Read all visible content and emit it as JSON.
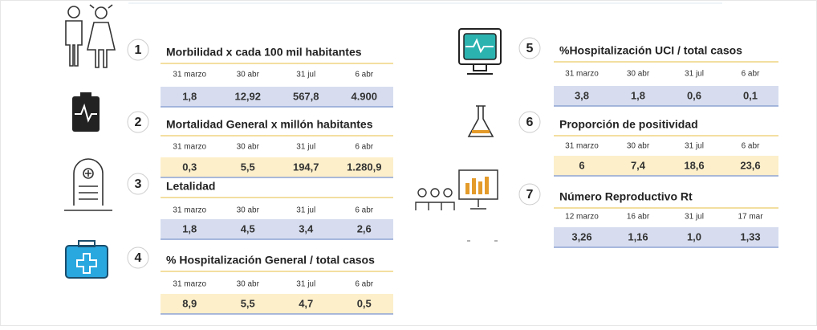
{
  "indicators": [
    {
      "number": 1,
      "title": "Morbilidad x cada 100 mil habitantes",
      "dates": [
        "31 marzo",
        "30 abr",
        "31 jul",
        "6 abr"
      ],
      "values": [
        "1,8",
        "12,92",
        "567,8",
        "4.900"
      ],
      "color": "#d7ddef"
    },
    {
      "number": 2,
      "title": "Mortalidad General x millón habitantes",
      "dates": [
        "31 marzo",
        "30 abr",
        "31 jul",
        "6 abr"
      ],
      "values": [
        "0,3",
        "5,5",
        "194,7",
        "1.280,9"
      ],
      "color": "#fcefca"
    },
    {
      "number": 3,
      "title": "Letalidad",
      "dates": [
        "31 marzo",
        "30 abr",
        "31 jul",
        "6 abr"
      ],
      "values": [
        "1,8",
        "4,5",
        "3,4",
        "2,6"
      ],
      "color": "#d7ddef"
    },
    {
      "number": 4,
      "title": "% Hospitalización General / total casos",
      "dates": [
        "31 marzo",
        "30 abr",
        "31 jul",
        "6 abr"
      ],
      "values": [
        "8,9",
        "5,5",
        "4,7",
        "0,5"
      ],
      "color": "#fcefca"
    },
    {
      "number": 5,
      "title": "%Hospitalización UCI / total casos",
      "dates": [
        "31 marzo",
        "30 abr",
        "31 jul",
        "6 abr"
      ],
      "values": [
        "3,8",
        "1,8",
        "0,6",
        "0,1"
      ],
      "color": "#d7ddef"
    },
    {
      "number": 6,
      "title": "Proporción de positividad",
      "dates": [
        "31 marzo",
        "30 abr",
        "31 jul",
        "6 abr"
      ],
      "values": [
        "6",
        "7,4",
        "18,6",
        "23,6"
      ],
      "color": "#fcefca"
    },
    {
      "number": 7,
      "title": "Número Reproductivo Rt",
      "dates": [
        "12 marzo",
        "16 abr",
        "31 jul",
        "17 mar"
      ],
      "values": [
        "3,26",
        "1,16",
        "1,0",
        "1,33"
      ],
      "color": "#d7ddef"
    }
  ]
}
